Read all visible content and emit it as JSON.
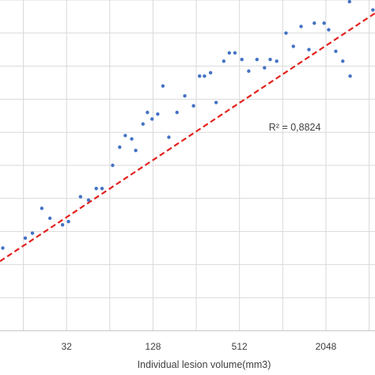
{
  "chart_data": {
    "type": "scatter",
    "xlabel": "Individual lesion volume(mm3)",
    "ylabel": "",
    "x_scale": "log2",
    "x_ticks": [
      32,
      128,
      512,
      2048
    ],
    "xlim": [
      11,
      4500
    ],
    "ylim": [
      0,
      10
    ],
    "grid": {
      "vertical": true,
      "horizontal": true
    },
    "colors": {
      "points": "#4472C4",
      "trendline": "#E3211C",
      "grid": "#D9D9D9",
      "text": "#404040"
    },
    "points": [
      {
        "x": 11.5,
        "y": 2.5
      },
      {
        "x": 16.5,
        "y": 2.8
      },
      {
        "x": 18.5,
        "y": 2.95
      },
      {
        "x": 21.5,
        "y": 3.7
      },
      {
        "x": 24.5,
        "y": 3.4
      },
      {
        "x": 30,
        "y": 3.2
      },
      {
        "x": 33,
        "y": 3.3
      },
      {
        "x": 40,
        "y": 4.05
      },
      {
        "x": 45.5,
        "y": 3.95
      },
      {
        "x": 51.5,
        "y": 4.3
      },
      {
        "x": 56.5,
        "y": 4.3
      },
      {
        "x": 67,
        "y": 5.0
      },
      {
        "x": 75,
        "y": 5.55
      },
      {
        "x": 82,
        "y": 5.9
      },
      {
        "x": 91,
        "y": 5.8
      },
      {
        "x": 97,
        "y": 5.45
      },
      {
        "x": 109,
        "y": 6.25
      },
      {
        "x": 117,
        "y": 6.6
      },
      {
        "x": 126,
        "y": 6.4
      },
      {
        "x": 138,
        "y": 6.55
      },
      {
        "x": 150,
        "y": 7.4
      },
      {
        "x": 165,
        "y": 5.85
      },
      {
        "x": 188,
        "y": 6.6
      },
      {
        "x": 213,
        "y": 7.1
      },
      {
        "x": 245,
        "y": 6.8
      },
      {
        "x": 270,
        "y": 7.7
      },
      {
        "x": 292,
        "y": 7.7
      },
      {
        "x": 322,
        "y": 7.8
      },
      {
        "x": 352,
        "y": 6.9
      },
      {
        "x": 398,
        "y": 8.15
      },
      {
        "x": 435,
        "y": 8.4
      },
      {
        "x": 476,
        "y": 8.4
      },
      {
        "x": 532,
        "y": 8.2
      },
      {
        "x": 594,
        "y": 7.85
      },
      {
        "x": 678,
        "y": 8.2
      },
      {
        "x": 765,
        "y": 7.95
      },
      {
        "x": 838,
        "y": 8.2
      },
      {
        "x": 930,
        "y": 8.15
      },
      {
        "x": 1080,
        "y": 9.0
      },
      {
        "x": 1215,
        "y": 8.6
      },
      {
        "x": 1375,
        "y": 9.2
      },
      {
        "x": 1560,
        "y": 8.5
      },
      {
        "x": 1700,
        "y": 9.3
      },
      {
        "x": 1990,
        "y": 9.3
      },
      {
        "x": 2140,
        "y": 9.1
      },
      {
        "x": 2400,
        "y": 8.45
      },
      {
        "x": 2685,
        "y": 8.15
      },
      {
        "x": 2990,
        "y": 9.95
      },
      {
        "x": 3020,
        "y": 7.7
      },
      {
        "x": 4350,
        "y": 9.7
      }
    ],
    "trendline": {
      "style": "dashed",
      "from": {
        "x": 11,
        "y": 2.1
      },
      "to": {
        "x": 4500,
        "y": 9.6
      }
    },
    "annotations": [
      {
        "text": "R² = 0,8824",
        "x": 820,
        "y": 6.05
      }
    ]
  }
}
